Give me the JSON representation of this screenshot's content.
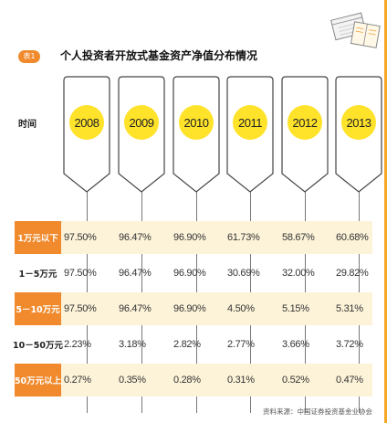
{
  "table_tag": "表1",
  "title": "个人投资者开放式基金资产净值分布情况",
  "time_label": "时间",
  "years": [
    "2008",
    "2009",
    "2010",
    "2011",
    "2012",
    "2013"
  ],
  "rows": [
    {
      "label": "1万元以下",
      "highlight": true,
      "values": [
        "97.50%",
        "96.47%",
        "96.90%",
        "61.73%",
        "58.67%",
        "60.68%"
      ]
    },
    {
      "label": "1－5万元",
      "highlight": false,
      "values": [
        "97.50%",
        "96.47%",
        "96.90%",
        "30.69%",
        "32.00%",
        "29.82%"
      ]
    },
    {
      "label": "5－10万元",
      "highlight": true,
      "values": [
        "97.50%",
        "96.47%",
        "96.90%",
        "4.50%",
        "5.15%",
        "5.31%"
      ]
    },
    {
      "label": "10－50万元",
      "highlight": false,
      "values": [
        "2.23%",
        "3.18%",
        "2.82%",
        "2.77%",
        "3.66%",
        "3.72%"
      ]
    },
    {
      "label": "50万元以上",
      "highlight": true,
      "values": [
        "0.27%",
        "0.35%",
        "0.28%",
        "0.31%",
        "0.52%",
        "0.47%"
      ]
    }
  ],
  "source": "资料来源：中国证券投资基金业协会",
  "colors": {
    "accent": "#f08a2c",
    "year_circle": "#ffe22a",
    "row_shade": "#fdf3d9"
  }
}
